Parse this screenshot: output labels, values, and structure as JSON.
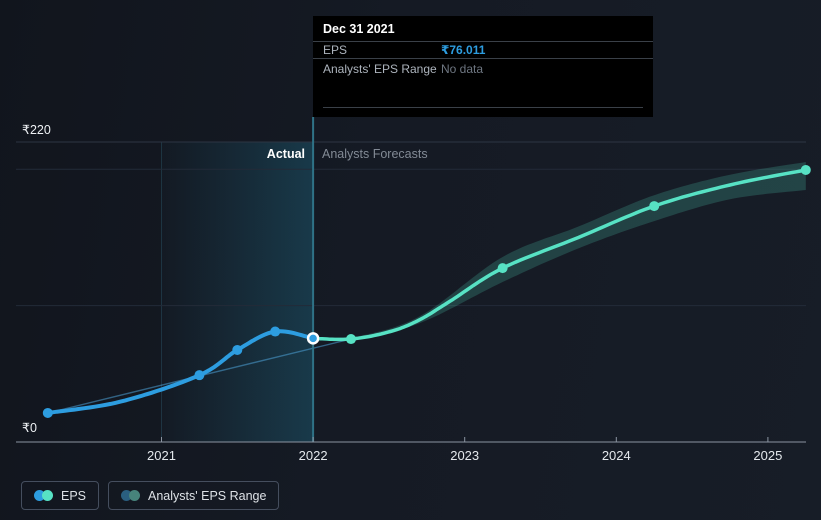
{
  "colors": {
    "background": "#151a24",
    "eps_line": "#2d9de0",
    "forecast_line": "#57e2c4",
    "forecast_band": "rgba(87,226,196,0.2)",
    "annual_trend_line": "rgba(77,160,214,0.55)",
    "divider_line": "#2f7286",
    "tooltip_background": "#000000",
    "grid_line": "#232b38",
    "axis_line": "#8b94a1",
    "muted_text": "#828a95",
    "legend_range_blue": "#2a5f80",
    "legend_range_teal": "#47837b"
  },
  "tooltip": {
    "title": "Dec 31 2021",
    "rows": [
      {
        "label": "EPS",
        "value": "₹76.011"
      },
      {
        "label": "Analysts' EPS Range",
        "value": "No data"
      }
    ]
  },
  "phases": {
    "actual_label": "Actual",
    "forecast_label": "Analysts Forecasts"
  },
  "y_axis_labels": {
    "max_label": "₹220",
    "min_label": "₹0"
  },
  "legend": {
    "items": [
      {
        "label": "EPS"
      },
      {
        "label": "Analysts' EPS Range"
      }
    ]
  },
  "chart_data": {
    "type": "line",
    "currency": "₹",
    "x_axis": {
      "ticks": [
        2021,
        2022,
        2023,
        2024,
        2025
      ],
      "domain": [
        2020.05,
        2025.3
      ]
    },
    "y_axis": {
      "domain": [
        0,
        220
      ],
      "gridlines": [
        100,
        200
      ],
      "max_label_value": 220,
      "min_label_value": 0
    },
    "legend_position": "bottom-left",
    "grid": true,
    "active_point": {
      "series": "eps_actual",
      "date_label": "Dec 31 2021",
      "x": 2022.0,
      "value": 76.011
    },
    "series": [
      {
        "id": "eps_actual",
        "name": "EPS",
        "color": "#2d9de0",
        "markers": [
          {
            "x": 2020.25,
            "value": 21.3
          },
          {
            "x": 2021.25,
            "value": 49.0
          },
          {
            "x": 2021.5,
            "value": 67.5
          },
          {
            "x": 2021.75,
            "value": 81.0
          },
          {
            "x": 2022.0,
            "value": 76.011
          }
        ],
        "curve": [
          [
            2020.25,
            21.3
          ],
          [
            2020.73,
            29.6
          ],
          [
            2021.25,
            49.0
          ],
          [
            2021.5,
            67.5
          ],
          [
            2021.75,
            81.0
          ],
          [
            2022.0,
            76.011
          ]
        ]
      },
      {
        "id": "eps_forecast",
        "name": "EPS (analysts forecast)",
        "color": "#57e2c4",
        "markers": [
          {
            "x": 2022.25,
            "value": 75.5
          },
          {
            "x": 2023.25,
            "value": 127.5
          },
          {
            "x": 2024.25,
            "value": 173.0
          },
          {
            "x": 2025.25,
            "value": 199.5
          }
        ],
        "curve": [
          [
            2022.0,
            76.011
          ],
          [
            2022.25,
            75.5
          ],
          [
            2022.51,
            81.0
          ],
          [
            2022.7,
            89.5
          ],
          [
            2022.9,
            103.0
          ],
          [
            2023.25,
            127.5
          ],
          [
            2023.75,
            150.0
          ],
          [
            2024.25,
            173.0
          ],
          [
            2024.75,
            188.5
          ],
          [
            2025.25,
            199.5
          ]
        ]
      },
      {
        "id": "eps_annual_trend",
        "name": "EPS annual trend",
        "color": "rgba(77,160,214,0.55)",
        "markers": [],
        "curve": [
          [
            2020.25,
            21.3
          ],
          [
            2021.25,
            48.5
          ],
          [
            2022.25,
            75.5
          ]
        ]
      }
    ],
    "band": {
      "name": "Analysts' EPS Range",
      "color": "rgba(87,226,196,0.2)",
      "upper": [
        [
          2022.0,
          76.011
        ],
        [
          2022.25,
          76.5
        ],
        [
          2022.7,
          92.0
        ],
        [
          2023.25,
          135.7
        ],
        [
          2023.75,
          158.0
        ],
        [
          2024.25,
          181.0
        ],
        [
          2024.75,
          196.0
        ],
        [
          2025.25,
          205.3
        ]
      ],
      "lower": [
        [
          2022.0,
          76.011
        ],
        [
          2022.25,
          74.5
        ],
        [
          2022.7,
          87.0
        ],
        [
          2023.25,
          117.3
        ],
        [
          2023.75,
          142.0
        ],
        [
          2024.25,
          162.0
        ],
        [
          2024.75,
          178.0
        ],
        [
          2025.25,
          184.8
        ]
      ]
    }
  }
}
